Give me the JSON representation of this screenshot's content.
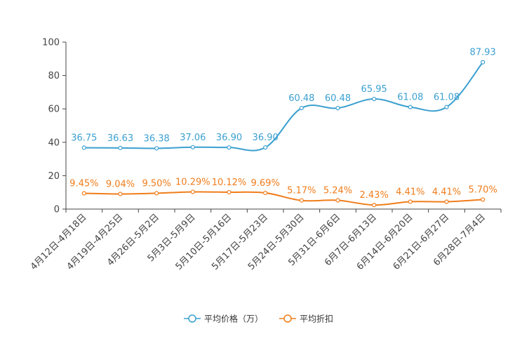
{
  "chart_data": {
    "type": "line",
    "categories": [
      "4月12日-4月18日",
      "4月19日-4月25日",
      "4月26日-5月2日",
      "5月3日-5月9日",
      "5月10日-5月16日",
      "5月17日-5月23日",
      "5月24日-5月30日",
      "5月31日-6月6日",
      "6月7日-6月13日",
      "6月14日-6月20日",
      "6月21日-6月27日",
      "6月28日-7月4日"
    ],
    "yticks": [
      "0",
      "20",
      "40",
      "60",
      "80",
      "100"
    ],
    "ylim": [
      0,
      100
    ],
    "series": [
      {
        "name": "平均价格（万）",
        "color": "#3ba0d0",
        "values": [
          36.75,
          36.63,
          36.38,
          37.06,
          36.9,
          36.9,
          60.48,
          60.48,
          65.95,
          61.08,
          61.08,
          87.93
        ],
        "labels": [
          "36.75",
          "36.63",
          "36.38",
          "37.06",
          "36.90",
          "36.90",
          "60.48",
          "60.48",
          "65.95",
          "61.08",
          "61.08",
          "87.93"
        ]
      },
      {
        "name": "平均折扣",
        "color": "#f07d1b",
        "values": [
          9.45,
          9.04,
          9.5,
          10.29,
          10.12,
          9.69,
          5.17,
          5.24,
          2.43,
          4.41,
          4.41,
          5.7
        ],
        "labels": [
          "9.45%",
          "9.04%",
          "9.50%",
          "10.29%",
          "10.12%",
          "9.69%",
          "5.17%",
          "5.24%",
          "2.43%",
          "4.41%",
          "4.41%",
          "5.70%"
        ]
      }
    ],
    "legend": "bottom-center"
  }
}
